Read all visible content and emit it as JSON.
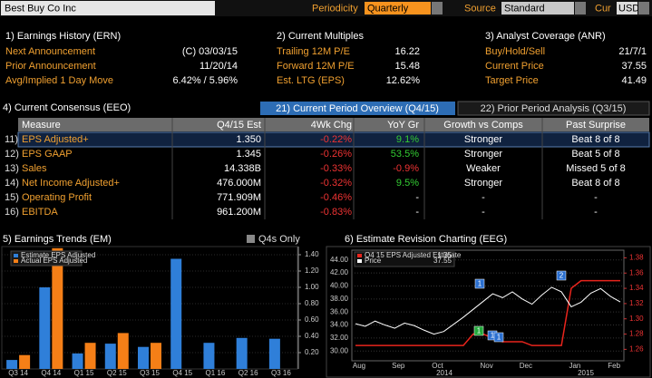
{
  "header": {
    "title": "Best Buy Co Inc",
    "periodicity_label": "Periodicity",
    "periodicity": "Quarterly",
    "source_label": "Source",
    "source": "Standard",
    "currency_label": "Cur",
    "currency": "USD"
  },
  "earnings_history": {
    "title": "1) Earnings History (ERN)",
    "rows": [
      [
        "Next Announcement",
        "(C) 03/03/15"
      ],
      [
        "Prior Announcement",
        "11/20/14"
      ],
      [
        "Avg/Implied 1 Day Move",
        "6.42% / 5.96%"
      ]
    ]
  },
  "current_multiples": {
    "title": "2) Current Multiples",
    "rows": [
      [
        "Trailing 12M P/E",
        "16.22"
      ],
      [
        "Forward 12M P/E",
        "15.48"
      ],
      [
        "Est. LTG (EPS)",
        "12.62%"
      ]
    ]
  },
  "analyst_coverage": {
    "title": "3) Analyst Coverage (ANR)",
    "rows": [
      [
        "Buy/Hold/Sell",
        "21/7/1"
      ],
      [
        "Current Price",
        "37.55"
      ],
      [
        "Target Price",
        "41.49"
      ]
    ]
  },
  "consensus": {
    "title": "4) Current Consensus (EEO)",
    "tabs": [
      "21) Current Period Overview (Q4/15)",
      "22) Prior Period Analysis (Q3/15)"
    ],
    "columns": [
      "Measure",
      "Q4/15 Est",
      "4Wk Chg",
      "YoY Gr",
      "Growth vs Comps",
      "Past Surprise"
    ],
    "rows": [
      [
        "11)",
        "EPS Adjusted+",
        "1.350",
        "-0.22%",
        "9.1%",
        "Stronger",
        "Beat 8 of 8"
      ],
      [
        "12)",
        "EPS GAAP",
        "1.345",
        "-0.26%",
        "53.5%",
        "Stronger",
        "Beat 5 of 8"
      ],
      [
        "13)",
        "Sales",
        "14.338B",
        "-0.33%",
        "-0.9%",
        "Weaker",
        "Missed 5 of 8"
      ],
      [
        "14)",
        "Net Income Adjusted+",
        "476.000M",
        "-0.32%",
        "9.5%",
        "Stronger",
        "Beat 8 of 8"
      ],
      [
        "15)",
        "Operating Profit",
        "771.909M",
        "-0.46%",
        "-",
        "-",
        "-"
      ],
      [
        "16)",
        "EBITDA",
        "961.200M",
        "-0.83%",
        "-",
        "-",
        "-"
      ]
    ]
  },
  "chart_data": [
    {
      "type": "bar",
      "title": "5) Earnings Trends (EM)",
      "option": "Q4s Only",
      "categories": [
        "Q3 14",
        "Q4 14",
        "Q1 15",
        "Q2 15",
        "Q3 15",
        "Q4 15",
        "Q1 16",
        "Q2 16",
        "Q3 16"
      ],
      "series": [
        {
          "name": "Estimate EPS Adjusted",
          "color": "#2f7fd9",
          "values": [
            0.11,
            1.0,
            0.19,
            0.31,
            0.27,
            1.35,
            0.32,
            0.38,
            0.37
          ]
        },
        {
          "name": "Actual EPS Adjusted",
          "color": "#f57f17",
          "values": [
            0.17,
            1.48,
            0.32,
            0.44,
            0.32,
            null,
            null,
            null,
            null
          ]
        }
      ],
      "ylim": [
        0,
        1.5
      ],
      "yticks": [
        {
          "value": 0.2,
          "label": "0.20"
        },
        {
          "value": 0.4,
          "label": "0.40"
        },
        {
          "value": 0.6,
          "label": "0.60"
        },
        {
          "value": 0.8,
          "label": "0.80"
        },
        {
          "value": 1.0,
          "label": "1.00"
        },
        {
          "value": 1.2,
          "label": "1.20"
        },
        {
          "value": 1.4,
          "label": "1.40"
        }
      ],
      "grid": true
    },
    {
      "type": "line",
      "title": "6) Estimate Revision Charting (EEG)",
      "categories": [
        "Aug",
        null,
        null,
        null,
        "Sep",
        null,
        null,
        null,
        "Oct",
        null,
        null,
        null,
        null,
        "Nov",
        null,
        null,
        null,
        "Dec",
        null,
        null,
        null,
        null,
        "Jan",
        null,
        null,
        null,
        "Feb",
        null
      ],
      "year_labels": [
        "2014",
        "2015"
      ],
      "series": [
        {
          "name": "Q4 15 EPS Adjusted Estimate",
          "color": "#e8241c",
          "axis": "y2",
          "values": [
            1.265,
            1.265,
            1.265,
            1.265,
            1.265,
            1.265,
            1.265,
            1.265,
            1.265,
            1.265,
            1.265,
            1.265,
            1.28,
            1.28,
            1.275,
            1.27,
            1.27,
            1.27,
            1.265,
            1.265,
            1.265,
            1.265,
            1.34,
            1.35,
            1.35,
            1.35,
            1.35,
            1.35
          ]
        },
        {
          "name": "Price",
          "color": "#ffffff",
          "values": [
            34.2,
            33.8,
            34.6,
            34.0,
            33.5,
            34.3,
            33.9,
            33.2,
            32.6,
            33.0,
            34.1,
            35.2,
            36.4,
            37.6,
            38.8,
            38.2,
            39.1,
            38.0,
            37.2,
            38.6,
            39.8,
            39.1,
            36.8,
            37.5,
            38.9,
            39.6,
            38.4,
            37.55
          ]
        }
      ],
      "ylim": [
        28.5,
        45.5
      ],
      "yticks": [
        {
          "value": 30,
          "label": "30.00"
        },
        {
          "value": 32,
          "label": "32.00"
        },
        {
          "value": 34,
          "label": "34.00"
        },
        {
          "value": 36,
          "label": "36.00"
        },
        {
          "value": 38,
          "label": "38.00"
        },
        {
          "value": 40,
          "label": "40.00"
        },
        {
          "value": 42,
          "label": "42.00"
        },
        {
          "value": 44,
          "label": "44.00"
        }
      ],
      "y2lim": [
        1.245,
        1.39
      ],
      "y2ticks": [
        1.26,
        1.28,
        {
          "value": 1.3,
          "label": "1.30"
        },
        1.32,
        1.34,
        1.36,
        1.38
      ],
      "annotations": [
        {
          "label": "1",
          "color": "#2a6fd0"
        },
        {
          "label": "2",
          "color": "#2a6fd0"
        },
        {
          "label": "1",
          "color": "#22a83a"
        },
        {
          "label": "1",
          "color": "#2a6fd0"
        },
        {
          "label": "1",
          "color": "#2a6fd0"
        }
      ],
      "grid": true
    }
  ]
}
